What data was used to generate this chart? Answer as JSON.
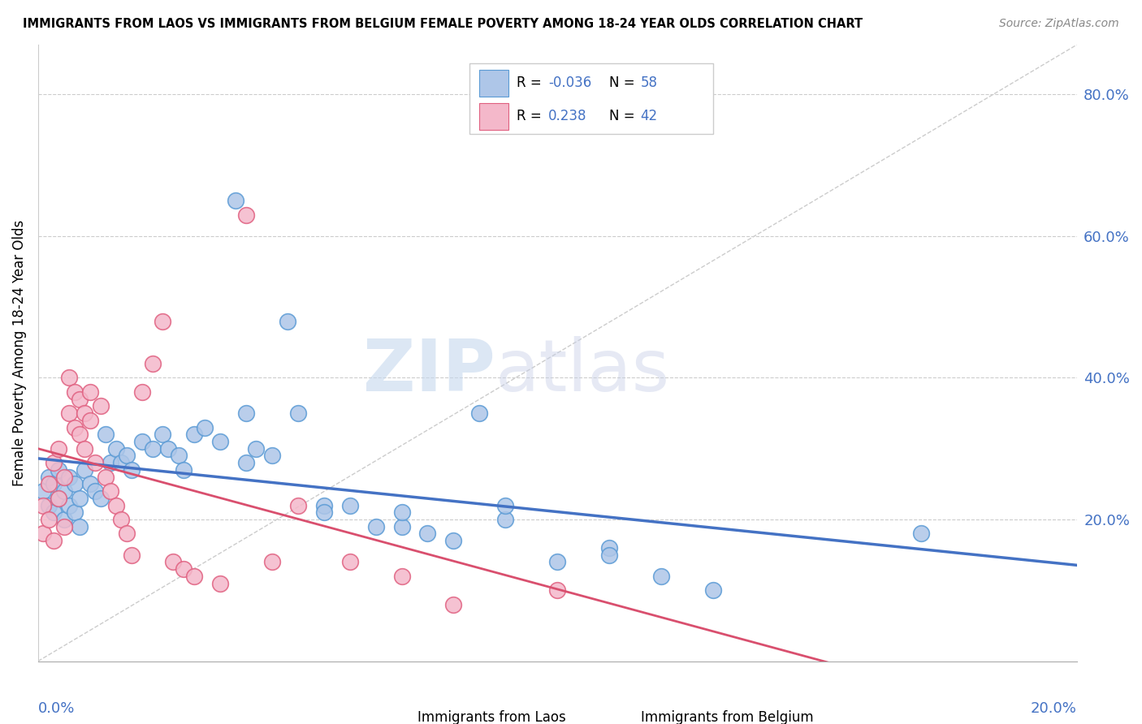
{
  "title": "IMMIGRANTS FROM LAOS VS IMMIGRANTS FROM BELGIUM FEMALE POVERTY AMONG 18-24 YEAR OLDS CORRELATION CHART",
  "source": "Source: ZipAtlas.com",
  "ylabel": "Female Poverty Among 18-24 Year Olds",
  "laos_color": "#aec6e8",
  "laos_edge": "#5b9bd5",
  "belgium_color": "#f4b8ca",
  "belgium_edge": "#e06080",
  "laos_R": -0.036,
  "laos_N": 58,
  "belgium_R": 0.238,
  "belgium_N": 42,
  "xlim": [
    0.0,
    0.2
  ],
  "ylim": [
    0.0,
    0.87
  ],
  "right_yticks": [
    0.2,
    0.4,
    0.6,
    0.8
  ],
  "right_yticklabels": [
    "20.0%",
    "40.0%",
    "60.0%",
    "80.0%"
  ],
  "laos_x": [
    0.001,
    0.002,
    0.002,
    0.003,
    0.003,
    0.004,
    0.004,
    0.005,
    0.005,
    0.006,
    0.006,
    0.007,
    0.007,
    0.008,
    0.008,
    0.009,
    0.01,
    0.011,
    0.012,
    0.013,
    0.014,
    0.015,
    0.016,
    0.017,
    0.018,
    0.02,
    0.022,
    0.024,
    0.025,
    0.027,
    0.028,
    0.03,
    0.032,
    0.035,
    0.038,
    0.04,
    0.042,
    0.045,
    0.048,
    0.05,
    0.055,
    0.06,
    0.065,
    0.07,
    0.075,
    0.08,
    0.085,
    0.09,
    0.1,
    0.11,
    0.12,
    0.13,
    0.04,
    0.055,
    0.07,
    0.09,
    0.11,
    0.17
  ],
  "laos_y": [
    0.24,
    0.22,
    0.26,
    0.21,
    0.25,
    0.23,
    0.27,
    0.2,
    0.24,
    0.22,
    0.26,
    0.21,
    0.25,
    0.23,
    0.19,
    0.27,
    0.25,
    0.24,
    0.23,
    0.32,
    0.28,
    0.3,
    0.28,
    0.29,
    0.27,
    0.31,
    0.3,
    0.32,
    0.3,
    0.29,
    0.27,
    0.32,
    0.33,
    0.31,
    0.65,
    0.35,
    0.3,
    0.29,
    0.48,
    0.35,
    0.22,
    0.22,
    0.19,
    0.19,
    0.18,
    0.17,
    0.35,
    0.2,
    0.14,
    0.16,
    0.12,
    0.1,
    0.28,
    0.21,
    0.21,
    0.22,
    0.15,
    0.18
  ],
  "belg_x": [
    0.001,
    0.001,
    0.002,
    0.002,
    0.003,
    0.003,
    0.004,
    0.004,
    0.005,
    0.005,
    0.006,
    0.006,
    0.007,
    0.007,
    0.008,
    0.008,
    0.009,
    0.009,
    0.01,
    0.01,
    0.011,
    0.012,
    0.013,
    0.014,
    0.015,
    0.016,
    0.017,
    0.018,
    0.02,
    0.022,
    0.024,
    0.026,
    0.028,
    0.03,
    0.035,
    0.04,
    0.045,
    0.05,
    0.06,
    0.07,
    0.08,
    0.1
  ],
  "belg_y": [
    0.18,
    0.22,
    0.2,
    0.25,
    0.17,
    0.28,
    0.23,
    0.3,
    0.19,
    0.26,
    0.35,
    0.4,
    0.33,
    0.38,
    0.32,
    0.37,
    0.3,
    0.35,
    0.38,
    0.34,
    0.28,
    0.36,
    0.26,
    0.24,
    0.22,
    0.2,
    0.18,
    0.15,
    0.38,
    0.42,
    0.48,
    0.14,
    0.13,
    0.12,
    0.11,
    0.63,
    0.14,
    0.22,
    0.14,
    0.12,
    0.08,
    0.1
  ]
}
